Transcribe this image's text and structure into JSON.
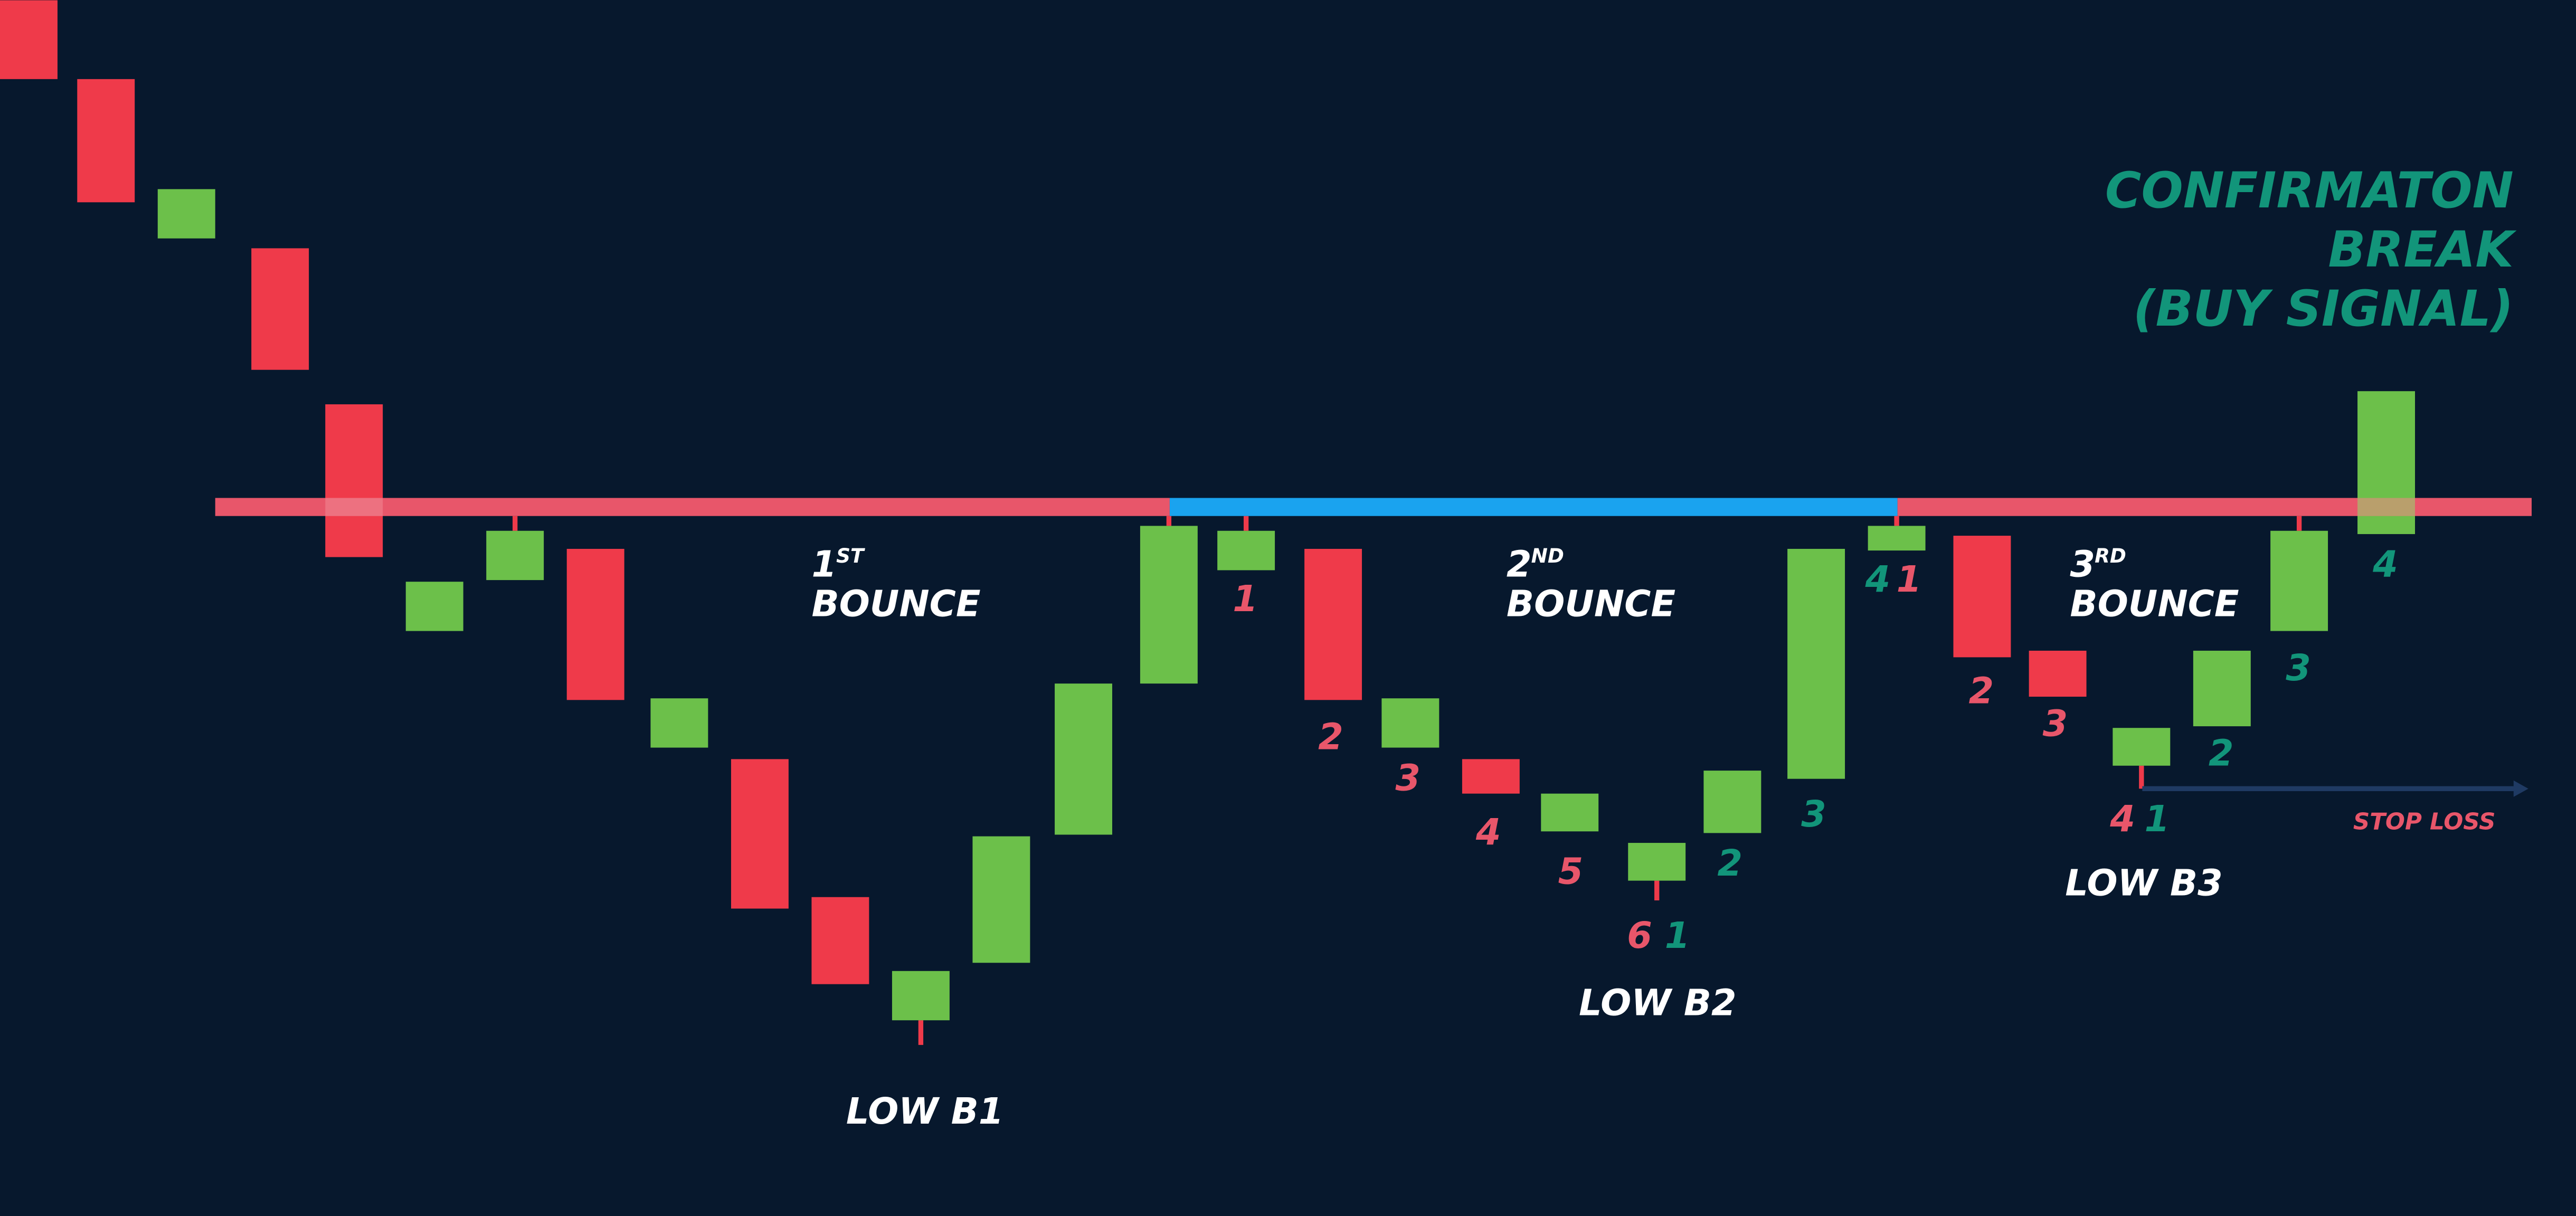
{
  "signal": {
    "lines": [
      "CONFIRMATON",
      "BREAK",
      "(BUY SIGNAL)"
    ],
    "color": "#12957a"
  },
  "bounces": [
    {
      "number": "1",
      "suffix": "ST",
      "label": "BOUNCE"
    },
    {
      "number": "2",
      "suffix": "ND",
      "label": "BOUNCE"
    },
    {
      "number": "3",
      "suffix": "RD",
      "label": "BOUNCE"
    }
  ],
  "lows": [
    "LOW B1",
    "LOW B2",
    "LOW B3"
  ],
  "stop_loss": {
    "label": "STOP LOSS",
    "color": "#e8566a"
  },
  "counts": [
    {
      "label": "1",
      "color": "#e8566a"
    },
    {
      "label": "2",
      "color": "#e8566a"
    },
    {
      "label": "3",
      "color": "#e8566a"
    },
    {
      "label": "4",
      "color": "#e8566a"
    },
    {
      "label": "5",
      "color": "#e8566a"
    },
    {
      "label": "6",
      "color": "#e8566a"
    },
    {
      "label": "1",
      "color": "#12957a"
    },
    {
      "label": "2",
      "color": "#12957a"
    },
    {
      "label": "3",
      "color": "#12957a"
    },
    {
      "label": "4",
      "color": "#12957a"
    },
    {
      "label": "1",
      "color": "#e8566a"
    },
    {
      "label": "2",
      "color": "#e8566a"
    },
    {
      "label": "3",
      "color": "#e8566a"
    },
    {
      "label": "4",
      "color": "#e8566a"
    },
    {
      "label": "1",
      "color": "#12957a"
    },
    {
      "label": "2",
      "color": "#12957a"
    },
    {
      "label": "3",
      "color": "#12957a"
    },
    {
      "label": "4",
      "color": "#12957a"
    }
  ]
}
